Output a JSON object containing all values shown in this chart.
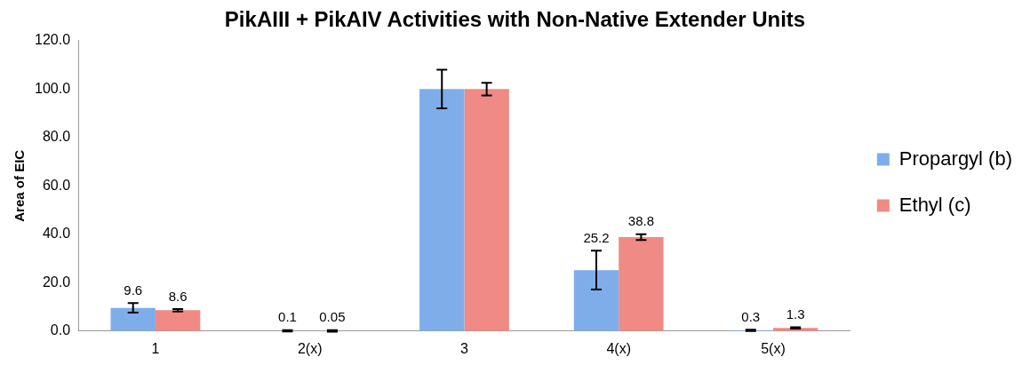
{
  "chart_data": {
    "type": "bar",
    "title": "PikAIII + PikAIV Activities with Non-Native Extender Units",
    "ylabel": "Area of EIC",
    "categories": [
      "1",
      "2(x)",
      "3",
      "4(x)",
      "5(x)"
    ],
    "series": [
      {
        "name": "Propargyl (b)",
        "color": "#7fadea",
        "values": [
          9.6,
          0.1,
          100,
          25.2,
          0.3
        ],
        "errors": [
          2,
          0.3,
          8,
          8,
          0.3
        ],
        "value_labels": [
          "9.6",
          "0.1",
          null,
          "25.2",
          "0.3"
        ]
      },
      {
        "name": "Ethyl (c)",
        "color": "#f08a84",
        "values": [
          8.6,
          0.05,
          100,
          38.8,
          1.3
        ],
        "errors": [
          0.5,
          0.3,
          2.6,
          1.2,
          0.3
        ],
        "value_labels": [
          "8.6",
          "0.05",
          null,
          "38.8",
          "1.3"
        ]
      }
    ],
    "ylim": [
      0,
      120
    ],
    "yticks": [
      {
        "value": 0,
        "label": "0.0"
      },
      {
        "value": 20,
        "label": "20.0"
      },
      {
        "value": 40,
        "label": "40.0"
      },
      {
        "value": 60,
        "label": "60.0"
      },
      {
        "value": 80,
        "label": "80.0"
      },
      {
        "value": 100,
        "label": "100.0"
      },
      {
        "value": 120,
        "label": "120.0"
      }
    ],
    "grid": false,
    "legend": "right"
  }
}
